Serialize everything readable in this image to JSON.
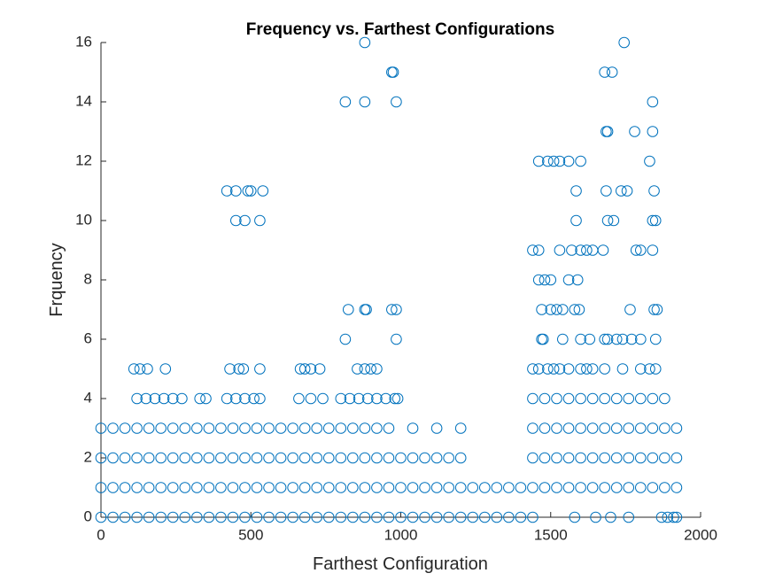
{
  "chart_data": {
    "type": "scatter",
    "title": "Frequency vs. Farthest Configurations",
    "x_label": "Farthest Configuration",
    "y_label": "Frquency",
    "color": "#0072BD",
    "xlim": [
      0,
      2000
    ],
    "ylim": [
      0,
      16
    ],
    "xticks": [
      0,
      500,
      1000,
      1500,
      2000
    ],
    "yticks": [
      0,
      2,
      4,
      6,
      8,
      10,
      12,
      14,
      16
    ],
    "x": [
      0,
      40,
      80,
      120,
      160,
      200,
      240,
      280,
      320,
      360,
      400,
      440,
      480,
      520,
      560,
      600,
      640,
      680,
      720,
      760,
      800,
      840,
      880,
      920,
      960,
      1000,
      1040,
      1080,
      1120,
      1160,
      1200,
      1240,
      1280,
      1320,
      1360,
      1400,
      1440,
      1580,
      1650,
      1700,
      1760,
      1870,
      1890,
      1910,
      1920,
      0,
      40,
      80,
      120,
      160,
      200,
      240,
      280,
      320,
      360,
      400,
      440,
      480,
      520,
      560,
      600,
      640,
      680,
      720,
      760,
      800,
      840,
      880,
      920,
      960,
      1000,
      1040,
      1080,
      1120,
      1160,
      1200,
      1240,
      1280,
      1320,
      1360,
      1400,
      1440,
      1480,
      1520,
      1560,
      1600,
      1640,
      1680,
      1720,
      1760,
      1800,
      1840,
      1880,
      1920,
      0,
      40,
      80,
      120,
      160,
      200,
      240,
      280,
      320,
      360,
      400,
      440,
      480,
      520,
      560,
      600,
      640,
      680,
      720,
      760,
      800,
      840,
      880,
      920,
      960,
      1000,
      1040,
      1080,
      1120,
      1160,
      1200,
      1440,
      1480,
      1520,
      1560,
      1600,
      1640,
      1680,
      1720,
      1760,
      1800,
      1840,
      1880,
      1920,
      0,
      40,
      80,
      120,
      160,
      200,
      240,
      280,
      320,
      360,
      400,
      440,
      480,
      520,
      560,
      600,
      640,
      680,
      720,
      760,
      800,
      840,
      880,
      920,
      960,
      1040,
      1120,
      1200,
      1440,
      1480,
      1520,
      1560,
      1600,
      1640,
      1680,
      1720,
      1760,
      1800,
      1840,
      1880,
      1920,
      120,
      150,
      180,
      210,
      240,
      270,
      330,
      350,
      420,
      450,
      480,
      510,
      530,
      660,
      700,
      740,
      800,
      830,
      860,
      890,
      920,
      950,
      980,
      990,
      1440,
      1480,
      1520,
      1560,
      1600,
      1640,
      1680,
      1720,
      1760,
      1800,
      1840,
      1880,
      110,
      130,
      155,
      215,
      430,
      460,
      475,
      530,
      665,
      680,
      700,
      730,
      855,
      880,
      900,
      920,
      1440,
      1460,
      1490,
      1510,
      1530,
      1560,
      1600,
      1620,
      1640,
      1680,
      1740,
      1800,
      1830,
      1850,
      815,
      985,
      1470,
      1475,
      1540,
      1600,
      1630,
      1680,
      1690,
      1720,
      1740,
      1770,
      1800,
      1850,
      825,
      880,
      885,
      970,
      985,
      1470,
      1500,
      1520,
      1540,
      1580,
      1595,
      1765,
      1845,
      1855,
      1460,
      1480,
      1500,
      1560,
      1590,
      1440,
      1460,
      1530,
      1570,
      1600,
      1620,
      1640,
      1675,
      1785,
      1800,
      1840,
      450,
      480,
      530,
      1585,
      1690,
      1710,
      1840,
      1850,
      420,
      450,
      490,
      500,
      540,
      1585,
      1685,
      1735,
      1755,
      1845,
      1460,
      1490,
      1510,
      1530,
      1560,
      1600,
      1830,
      1685,
      1690,
      1780,
      1840,
      815,
      880,
      985,
      1840,
      970,
      975,
      1680,
      1705,
      880,
      1745
    ],
    "values": [
      0,
      0,
      0,
      0,
      0,
      0,
      0,
      0,
      0,
      0,
      0,
      0,
      0,
      0,
      0,
      0,
      0,
      0,
      0,
      0,
      0,
      0,
      0,
      0,
      0,
      0,
      0,
      0,
      0,
      0,
      0,
      0,
      0,
      0,
      0,
      0,
      0,
      0,
      0,
      0,
      0,
      0,
      0,
      0,
      0,
      1,
      1,
      1,
      1,
      1,
      1,
      1,
      1,
      1,
      1,
      1,
      1,
      1,
      1,
      1,
      1,
      1,
      1,
      1,
      1,
      1,
      1,
      1,
      1,
      1,
      1,
      1,
      1,
      1,
      1,
      1,
      1,
      1,
      1,
      1,
      1,
      1,
      1,
      1,
      1,
      1,
      1,
      1,
      1,
      1,
      1,
      1,
      1,
      1,
      2,
      2,
      2,
      2,
      2,
      2,
      2,
      2,
      2,
      2,
      2,
      2,
      2,
      2,
      2,
      2,
      2,
      2,
      2,
      2,
      2,
      2,
      2,
      2,
      2,
      2,
      2,
      2,
      2,
      2,
      2,
      2,
      2,
      2,
      2,
      2,
      2,
      2,
      2,
      2,
      2,
      2,
      2,
      2,
      3,
      3,
      3,
      3,
      3,
      3,
      3,
      3,
      3,
      3,
      3,
      3,
      3,
      3,
      3,
      3,
      3,
      3,
      3,
      3,
      3,
      3,
      3,
      3,
      3,
      3,
      3,
      3,
      3,
      3,
      3,
      3,
      3,
      3,
      3,
      3,
      3,
      3,
      3,
      3,
      3,
      4,
      4,
      4,
      4,
      4,
      4,
      4,
      4,
      4,
      4,
      4,
      4,
      4,
      4,
      4,
      4,
      4,
      4,
      4,
      4,
      4,
      4,
      4,
      4,
      4,
      4,
      4,
      4,
      4,
      4,
      4,
      4,
      4,
      4,
      4,
      4,
      5,
      5,
      5,
      5,
      5,
      5,
      5,
      5,
      5,
      5,
      5,
      5,
      5,
      5,
      5,
      5,
      5,
      5,
      5,
      5,
      5,
      5,
      5,
      5,
      5,
      5,
      5,
      5,
      5,
      5,
      6,
      6,
      6,
      6,
      6,
      6,
      6,
      6,
      6,
      6,
      6,
      6,
      6,
      6,
      7,
      7,
      7,
      7,
      7,
      7,
      7,
      7,
      7,
      7,
      7,
      7,
      7,
      7,
      8,
      8,
      8,
      8,
      8,
      9,
      9,
      9,
      9,
      9,
      9,
      9,
      9,
      9,
      9,
      9,
      10,
      10,
      10,
      10,
      10,
      10,
      10,
      10,
      11,
      11,
      11,
      11,
      11,
      11,
      11,
      11,
      11,
      11,
      12,
      12,
      12,
      12,
      12,
      12,
      12,
      13,
      13,
      13,
      13,
      14,
      14,
      14,
      14,
      15,
      15,
      15,
      15,
      16,
      16
    ]
  }
}
